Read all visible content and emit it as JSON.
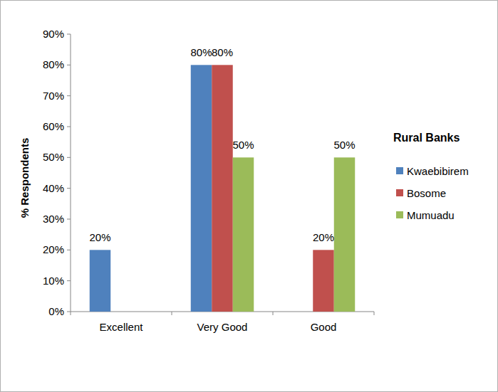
{
  "chart_data": {
    "type": "bar",
    "y_label": "% Respondents",
    "legend_title": "Rural Banks",
    "categories": [
      "Excellent",
      "Very Good",
      "Good"
    ],
    "series": [
      {
        "name": "Kwaebibirem",
        "color": "#4f81bd",
        "values": [
          20,
          80,
          null
        ],
        "value_labels": [
          "20%",
          "80%",
          null
        ]
      },
      {
        "name": "Bosome",
        "color": "#c0504d",
        "values": [
          null,
          80,
          20
        ],
        "value_labels": [
          null,
          "80%",
          "20%"
        ]
      },
      {
        "name": "Mumuadu",
        "color": "#9bbb59",
        "values": [
          null,
          50,
          50
        ],
        "value_labels": [
          null,
          "50%",
          "50%"
        ]
      }
    ],
    "ylim": [
      0,
      90
    ],
    "yticks": [
      {
        "value": 0,
        "label": "0%"
      },
      {
        "value": 10,
        "label": "10%"
      },
      {
        "value": 20,
        "label": "20%"
      },
      {
        "value": 30,
        "label": "30%"
      },
      {
        "value": 40,
        "label": "40%"
      },
      {
        "value": 50,
        "label": "50%"
      },
      {
        "value": 60,
        "label": "60%"
      },
      {
        "value": 70,
        "label": "70%"
      },
      {
        "value": 80,
        "label": "80%"
      },
      {
        "value": 90,
        "label": "90%"
      }
    ],
    "grid": false,
    "data_labels": true,
    "legend": "right"
  }
}
